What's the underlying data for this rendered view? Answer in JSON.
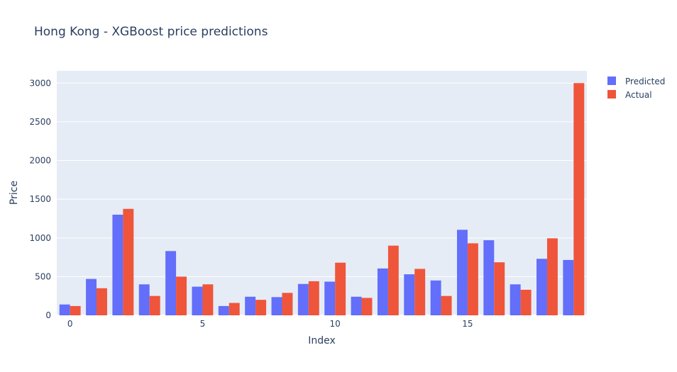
{
  "chart_data": {
    "type": "bar",
    "title": "Hong Kong - XGBoost price predictions",
    "xlabel": "Index",
    "ylabel": "Price",
    "x": [
      0,
      1,
      2,
      3,
      4,
      5,
      6,
      7,
      8,
      9,
      10,
      11,
      12,
      13,
      14,
      15,
      16,
      17,
      18,
      19
    ],
    "x_tick_labels": [
      "0",
      "5",
      "10",
      "15"
    ],
    "x_tick_values": [
      0,
      5,
      10,
      15
    ],
    "y_ticks": [
      0,
      500,
      1000,
      1500,
      2000,
      2500,
      3000
    ],
    "ylim": [
      0,
      3158
    ],
    "xlim": [
      -0.5,
      19.5
    ],
    "grid": true,
    "legend_position": "top-right",
    "series": [
      {
        "name": "Predicted",
        "color": "#636efa",
        "values": [
          140,
          470,
          1300,
          400,
          830,
          370,
          120,
          240,
          235,
          405,
          435,
          240,
          605,
          530,
          450,
          1105,
          970,
          400,
          730,
          715
        ]
      },
      {
        "name": "Actual",
        "color": "#ef553b",
        "values": [
          120,
          350,
          1375,
          250,
          500,
          400,
          160,
          200,
          290,
          440,
          680,
          225,
          900,
          600,
          250,
          930,
          685,
          330,
          995,
          3000
        ]
      }
    ]
  }
}
